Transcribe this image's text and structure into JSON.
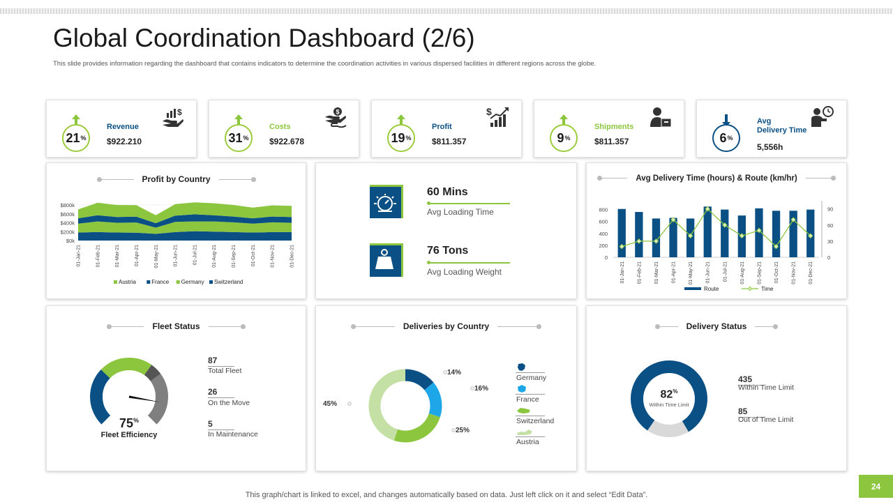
{
  "header": {
    "title": "Global Coordination Dashboard (2/6)",
    "subtitle": "This slide provides information regarding the dashboard  that contains indicators to determine the coordination activities in various dispersed facilities in different regions across the globe."
  },
  "kpis": [
    {
      "label": "Revenue",
      "value": "$922.210",
      "pct": "21",
      "pct_unit": "%",
      "trend": "up",
      "icon": "money-hand-icon",
      "label_color": "#0b5084"
    },
    {
      "label": "Costs",
      "value": "$922.678",
      "pct": "31",
      "pct_unit": "%",
      "trend": "up",
      "icon": "coin-hand-icon",
      "label_color": "#8cc63f"
    },
    {
      "label": "Profit",
      "value": "$811.357",
      "pct": "19",
      "pct_unit": "%",
      "trend": "up",
      "icon": "profit-chart-icon",
      "label_color": "#0b5084"
    },
    {
      "label": "Shipments",
      "value": "$811.357",
      "pct": "9",
      "pct_unit": "%",
      "trend": "up",
      "icon": "delivery-person-icon",
      "label_color": "#8cc63f"
    },
    {
      "label": "Avg",
      "label2": "Delivery Time",
      "value": "5,556h",
      "pct": "6",
      "pct_unit": "%",
      "trend": "down",
      "icon": "person-clock-icon",
      "label_color": "#0b5084"
    }
  ],
  "profit_by_country": {
    "title": "Profit by Country"
  },
  "loading": {
    "time_value": "60 Mins",
    "time_label": "Avg Loading Time",
    "weight_value": "76 Tons",
    "weight_label": "Avg Loading Weight"
  },
  "avg_delivery": {
    "title": "Avg Delivery Time (hours) & Route (km/hr)"
  },
  "fleet": {
    "title": "Fleet Status",
    "efficiency_value": "75",
    "efficiency_unit": "%",
    "efficiency_label": "Fleet Efficiency",
    "stats": [
      {
        "value": "87",
        "label": "Total Fleet"
      },
      {
        "value": "26",
        "label": "On the Move"
      },
      {
        "value": "5",
        "label": "In Maintenance"
      }
    ]
  },
  "deliveries": {
    "title": "Deliveries by Country",
    "legend": [
      "Germany",
      "France",
      "Switzerland",
      "Austria"
    ]
  },
  "delivery_status": {
    "title": "Delivery Status",
    "center_value": "82",
    "center_unit": "%",
    "center_label": "Within Time Limit",
    "stats": [
      {
        "value": "435",
        "label": "Within Time Limit"
      },
      {
        "value": "85",
        "label": "Out of Time Limit"
      }
    ]
  },
  "footer": {
    "note": "This graph/chart is linked to excel,  and changes automatically based on data. Just left click on it and select “Edit Data”.",
    "page": "24"
  },
  "colors": {
    "blue": "#0b5084",
    "green": "#8cc63f",
    "light_green": "#c5e0a5",
    "sky": "#1ea7e8",
    "grey": "#7f7f7f"
  },
  "chart_data": [
    {
      "id": "profit-by-country",
      "type": "area",
      "title": "Profit by Country",
      "categories": [
        "01-Jan-21",
        "01-Feb-21",
        "01-Mar-21",
        "01-Apr-21",
        "01-May-21",
        "01-Jun-21",
        "01-Jul-21",
        "01-Aug-21",
        "01-Sep-21",
        "01-Oct-21",
        "01-Nov-21",
        "01-Dec-21"
      ],
      "series": [
        {
          "name": "Switzerland",
          "color": "#0b5084",
          "values": [
            90,
            95,
            90,
            88,
            75,
            95,
            105,
            100,
            95,
            90,
            95,
            95
          ]
        },
        {
          "name": "Germany",
          "color": "#8cc63f",
          "values": [
            100,
            120,
            110,
            115,
            70,
            115,
            110,
            115,
            110,
            100,
            110,
            105
          ]
        },
        {
          "name": "France",
          "color": "#0b5084",
          "values": [
            60,
            70,
            65,
            65,
            50,
            70,
            80,
            70,
            65,
            60,
            65,
            65
          ]
        },
        {
          "name": "Austria",
          "color": "#8cc63f",
          "values": [
            100,
            140,
            135,
            130,
            90,
            130,
            135,
            135,
            130,
            120,
            125,
            125
          ]
        }
      ],
      "stacked": true,
      "y_ticks": [
        "$0k",
        "$200k",
        "$400k",
        "$600k",
        "$800k"
      ],
      "y_tick_values": [
        0,
        100,
        200,
        300,
        400
      ],
      "legend": [
        "Austria",
        "France",
        "Germany",
        "Switzerland"
      ],
      "legend_colors": [
        "#8cc63f",
        "#0b5084",
        "#8cc63f",
        "#0b5084"
      ]
    },
    {
      "id": "avg-delivery-route",
      "type": "bar",
      "title": "Avg Delivery Time (hours) & Route (km/hr)",
      "categories": [
        "01-Jan-21",
        "01-Feb-21",
        "01-Mar-21",
        "01-Apr-21",
        "01-May-21",
        "01-Jun-21",
        "01-Jul-21",
        "01-Aug-21",
        "01-Sep-21",
        "01-Oct-21",
        "01-Nov-21",
        "01-Dec-21"
      ],
      "series": [
        {
          "name": "Route",
          "type": "bar",
          "axis": "left",
          "color": "#0b5084",
          "values": [
            810,
            760,
            650,
            660,
            650,
            850,
            800,
            700,
            820,
            780,
            780,
            800
          ]
        },
        {
          "name": "Time",
          "type": "line",
          "axis": "right",
          "color": "#8cc63f",
          "values": [
            20,
            30,
            30,
            70,
            40,
            90,
            60,
            40,
            50,
            20,
            70,
            40
          ]
        }
      ],
      "y_left": {
        "min": 0,
        "max": 900,
        "ticks": [
          0,
          200,
          400,
          600,
          800
        ]
      },
      "y_right": {
        "min": 0,
        "max": 100,
        "ticks": [
          0,
          30,
          60,
          90
        ]
      },
      "legend": [
        "Route",
        "Time"
      ]
    },
    {
      "id": "fleet-gauge",
      "type": "pie",
      "title": "Fleet Status",
      "categories": [
        "Blue",
        "Green",
        "Dark",
        "Grey"
      ],
      "values": [
        33,
        30,
        7,
        30
      ],
      "colors": [
        "#0b5084",
        "#8cc63f",
        "#555555",
        "#7f7f7f"
      ],
      "center_value": "75%"
    },
    {
      "id": "deliveries-by-country",
      "type": "pie",
      "title": "Deliveries by Country",
      "categories": [
        "Germany",
        "France",
        "Switzerland",
        "Austria"
      ],
      "values": [
        14,
        16,
        25,
        45
      ],
      "colors": [
        "#0b5084",
        "#1ea7e8",
        "#8cc63f",
        "#c5e0a5"
      ],
      "labels": [
        "14%",
        "16%",
        "25%",
        "45%"
      ]
    },
    {
      "id": "delivery-status",
      "type": "pie",
      "title": "Delivery Status",
      "categories": [
        "Within Time Limit",
        "Out of Time Limit"
      ],
      "values": [
        82,
        18
      ],
      "colors": [
        "#0b5084",
        "#d9d9d9"
      ]
    }
  ]
}
